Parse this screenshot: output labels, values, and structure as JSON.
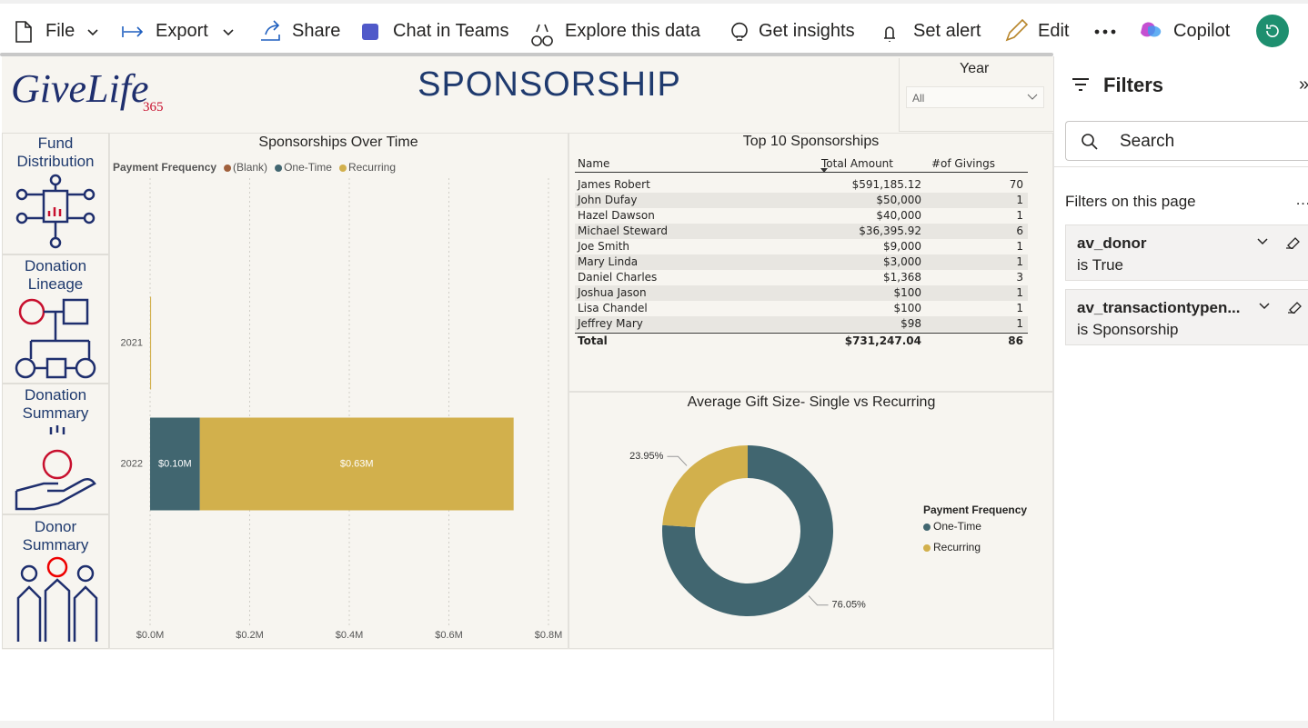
{
  "toolbar": [
    "File",
    "Export",
    "Share",
    "Chat in Teams",
    "Explore this data",
    "Get insights",
    "Set alert",
    "Edit",
    "Copilot"
  ],
  "logo": {
    "text": "GiveLife",
    "sub": "365"
  },
  "title": "SPONSORSHIP",
  "slicer": {
    "label": "Year",
    "value": "All"
  },
  "nav": [
    "Fund Distribution",
    "Donation Lineage",
    "Donation Summary",
    "Donor Summary"
  ],
  "table": {
    "title": "Top 10 Sponsorships",
    "columns": [
      "Name",
      "Total Amount",
      "#of Givings"
    ],
    "rows": [
      [
        "James Robert",
        "$591,185.12",
        70
      ],
      [
        "John Dufay",
        "$50,000",
        1
      ],
      [
        "Hazel Dawson",
        "$40,000",
        1
      ],
      [
        "Michael Steward",
        "$36,395.92",
        6
      ],
      [
        "Joe Smith",
        "$9,000",
        1
      ],
      [
        "Mary Linda",
        "$3,000",
        1
      ],
      [
        "Daniel Charles",
        "$1,368",
        3
      ],
      [
        "Joshua Jason",
        "$100",
        1
      ],
      [
        "Lisa Chandel",
        "$100",
        1
      ],
      [
        "Jeffrey Mary",
        "$98",
        1
      ]
    ],
    "total": [
      "Total",
      "$731,247.04",
      86
    ]
  },
  "filters": {
    "title": "Filters",
    "search": "Search",
    "section": "Filters on this page",
    "cards": [
      {
        "field": "av_donor",
        "condition": "is True"
      },
      {
        "field": "av_transactiontypen...",
        "condition": "is Sponsorship"
      }
    ]
  },
  "chart_data": [
    {
      "type": "bar",
      "orientation": "horizontal",
      "stacked": true,
      "title": "Sponsorships Over Time",
      "legend_title": "Payment Frequency",
      "categories": [
        "2021",
        "2022"
      ],
      "series": [
        {
          "name": "(Blank)",
          "color": "#a0603c",
          "values": [
            null,
            null
          ]
        },
        {
          "name": "One-Time",
          "color": "#416670",
          "values": [
            null,
            0.1
          ],
          "value_labels": [
            null,
            "$0.10M"
          ]
        },
        {
          "name": "Recurring",
          "color": "#d2b04c",
          "values": [
            0.002,
            0.63
          ],
          "value_labels": [
            null,
            "$0.63M"
          ]
        }
      ],
      "xlim": [
        0,
        0.8
      ],
      "xticks": [
        {
          "value": 0,
          "label": "$0.0M"
        },
        {
          "value": 0.2,
          "label": "$0.2M"
        },
        {
          "value": 0.4,
          "label": "$0.4M"
        },
        {
          "value": 0.6,
          "label": "$0.6M"
        },
        {
          "value": 0.8,
          "label": "$0.8M"
        }
      ],
      "grid": true
    },
    {
      "type": "pie",
      "donut": true,
      "title": "Average Gift Size- Single vs Recurring",
      "legend_title": "Payment Frequency",
      "categories": [
        "One-Time",
        "Recurring"
      ],
      "values": [
        76.05,
        23.95
      ],
      "value_labels": [
        "76.05%",
        "23.95%"
      ],
      "colors": [
        "#416670",
        "#d2b04c"
      ]
    }
  ]
}
